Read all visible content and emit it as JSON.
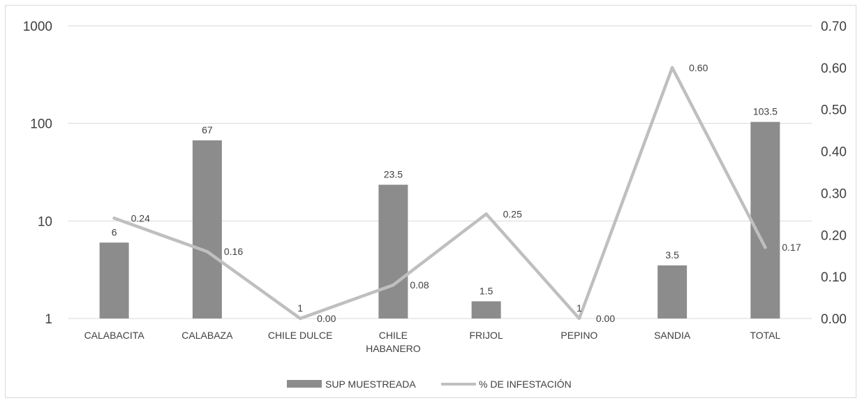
{
  "chart_data": {
    "type": "bar",
    "combo": true,
    "categories": [
      [
        "CALABACITA"
      ],
      [
        "CALABAZA"
      ],
      [
        "CHILE DULCE"
      ],
      [
        "CHILE",
        "HABANERO"
      ],
      [
        "FRIJOL"
      ],
      [
        "PEPINO"
      ],
      [
        "SANDIA"
      ],
      [
        "TOTAL"
      ]
    ],
    "series": [
      {
        "name": "SUP MUESTREADA",
        "kind": "bar",
        "axis": "left",
        "color": "#8c8c8c",
        "values": [
          6,
          67,
          1,
          23.5,
          1.5,
          1,
          3.5,
          103.5
        ],
        "labels": [
          "6",
          "67",
          "1",
          "23.5",
          "1.5",
          "1",
          "3.5",
          "103.5"
        ]
      },
      {
        "name": "% DE INFESTACIÓN",
        "kind": "line",
        "axis": "right",
        "color": "#bfbfbf",
        "values": [
          0.24,
          0.16,
          0.0,
          0.08,
          0.25,
          0.0,
          0.6,
          0.17
        ],
        "labels": [
          "0.24",
          "0.16",
          "0.00",
          "0.08",
          "0.25",
          "0.00",
          "0.60",
          "0.17"
        ]
      }
    ],
    "y_left": {
      "scale": "log",
      "ylim": [
        1,
        1000
      ],
      "ticks": [
        1,
        10,
        100,
        1000
      ],
      "tick_labels": [
        "1",
        "10",
        "100",
        "1000"
      ]
    },
    "y_right": {
      "scale": "linear",
      "ylim": [
        0,
        0.7
      ],
      "ticks": [
        0,
        0.1,
        0.2,
        0.3,
        0.4,
        0.5,
        0.6,
        0.7
      ],
      "tick_labels": [
        "0.00",
        "0.10",
        "0.20",
        "0.30",
        "0.40",
        "0.50",
        "0.60",
        "0.70"
      ]
    },
    "grid": true,
    "legend": "bottom",
    "title": "",
    "xlabel": "",
    "ylabel": ""
  }
}
